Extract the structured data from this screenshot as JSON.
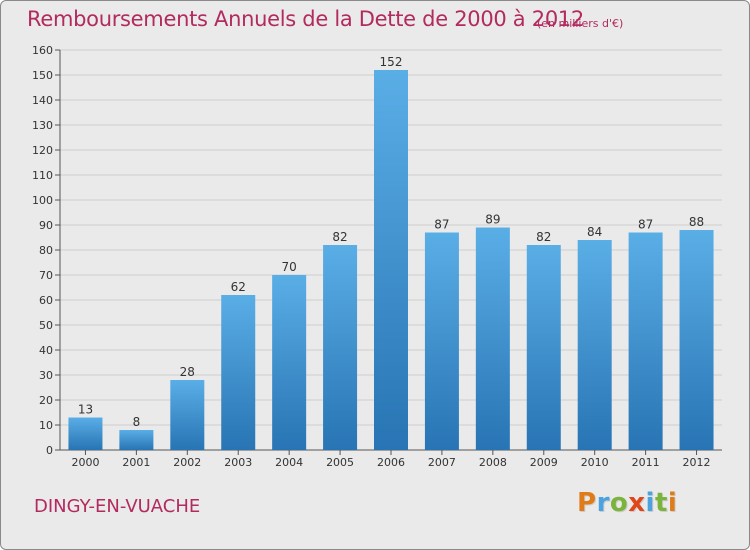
{
  "chart_data": {
    "type": "bar",
    "title": "Remboursements Annuels de la Dette de 2000 à 2012",
    "subtitle": "(en milliers d'€)",
    "categories": [
      "2000",
      "2001",
      "2002",
      "2003",
      "2004",
      "2005",
      "2006",
      "2007",
      "2008",
      "2009",
      "2010",
      "2011",
      "2012"
    ],
    "values": [
      13,
      8,
      28,
      62,
      70,
      82,
      152,
      87,
      89,
      82,
      84,
      87,
      88
    ],
    "xlabel": "",
    "ylabel": "",
    "ylim": [
      0,
      160
    ],
    "yticks": [
      0,
      10,
      20,
      30,
      40,
      50,
      60,
      70,
      80,
      90,
      100,
      110,
      120,
      130,
      140,
      150,
      160
    ],
    "grid": true,
    "bar_color": "#4a9fdb",
    "bar_color_dark": "#2874b4"
  },
  "footer": {
    "town": "DINGY-EN-VUACHE",
    "logo_text": "Proxiti",
    "logo_colors": [
      "#e07b1a",
      "#4aa3df",
      "#7ab43c",
      "#e0461a",
      "#4aa3df",
      "#7ab43c",
      "#e07b1a"
    ]
  },
  "colors": {
    "accent": "#b22a5e",
    "background": "#eaeaea",
    "grid": "#cfcfcf"
  }
}
